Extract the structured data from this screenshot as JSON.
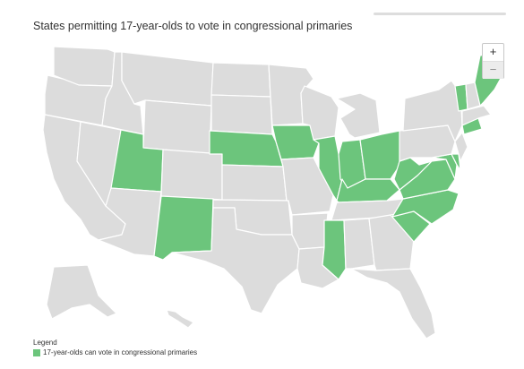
{
  "map": {
    "title": "States permitting 17-year-olds to vote in congressional primaries",
    "zoom_in_label": "+",
    "zoom_out_label": "−",
    "colors": {
      "highlight": "#6cc57c",
      "base": "#dcdcdc",
      "border": "#ffffff"
    },
    "states": [
      {
        "code": "WA",
        "highlighted": false
      },
      {
        "code": "OR",
        "highlighted": false
      },
      {
        "code": "CA",
        "highlighted": false
      },
      {
        "code": "ID",
        "highlighted": false
      },
      {
        "code": "NV",
        "highlighted": false
      },
      {
        "code": "MT",
        "highlighted": false
      },
      {
        "code": "WY",
        "highlighted": false
      },
      {
        "code": "UT",
        "highlighted": true
      },
      {
        "code": "AZ",
        "highlighted": false
      },
      {
        "code": "CO",
        "highlighted": false
      },
      {
        "code": "NM",
        "highlighted": true
      },
      {
        "code": "ND",
        "highlighted": false
      },
      {
        "code": "SD",
        "highlighted": false
      },
      {
        "code": "NE",
        "highlighted": true
      },
      {
        "code": "KS",
        "highlighted": false
      },
      {
        "code": "OK",
        "highlighted": false
      },
      {
        "code": "TX",
        "highlighted": false
      },
      {
        "code": "MN",
        "highlighted": false
      },
      {
        "code": "IA",
        "highlighted": true
      },
      {
        "code": "MO",
        "highlighted": false
      },
      {
        "code": "AR",
        "highlighted": false
      },
      {
        "code": "LA",
        "highlighted": false
      },
      {
        "code": "WI",
        "highlighted": false
      },
      {
        "code": "IL",
        "highlighted": true
      },
      {
        "code": "MI",
        "highlighted": false
      },
      {
        "code": "IN",
        "highlighted": true
      },
      {
        "code": "OH",
        "highlighted": true
      },
      {
        "code": "KY",
        "highlighted": true
      },
      {
        "code": "TN",
        "highlighted": false
      },
      {
        "code": "MS",
        "highlighted": true
      },
      {
        "code": "AL",
        "highlighted": false
      },
      {
        "code": "GA",
        "highlighted": false
      },
      {
        "code": "FL",
        "highlighted": false
      },
      {
        "code": "SC",
        "highlighted": true
      },
      {
        "code": "NC",
        "highlighted": true
      },
      {
        "code": "VA",
        "highlighted": true
      },
      {
        "code": "WV",
        "highlighted": true
      },
      {
        "code": "MD",
        "highlighted": true
      },
      {
        "code": "DE",
        "highlighted": true
      },
      {
        "code": "PA",
        "highlighted": false
      },
      {
        "code": "NY",
        "highlighted": false
      },
      {
        "code": "NJ",
        "highlighted": false
      },
      {
        "code": "CT",
        "highlighted": true
      },
      {
        "code": "MA",
        "highlighted": false
      },
      {
        "code": "VT",
        "highlighted": true
      },
      {
        "code": "NH",
        "highlighted": false
      },
      {
        "code": "ME",
        "highlighted": true
      },
      {
        "code": "AK",
        "highlighted": false
      },
      {
        "code": "HI",
        "highlighted": false
      }
    ]
  },
  "legend": {
    "title": "Legend",
    "item_label": "17-year-olds can vote in congressional primaries"
  }
}
